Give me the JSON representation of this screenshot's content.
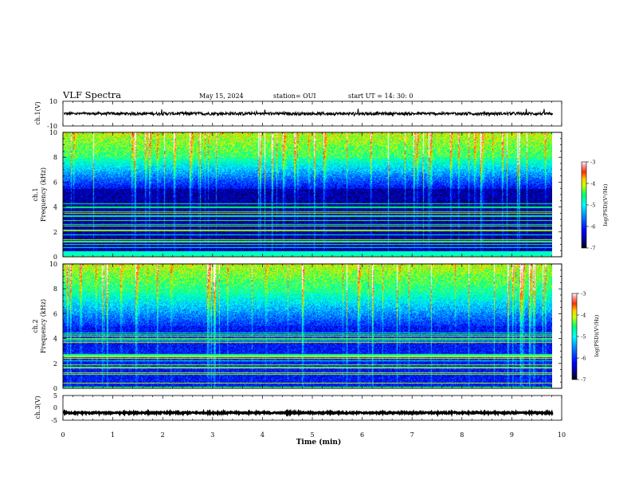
{
  "header": {
    "title": "VLF Spectra",
    "date": "May 15, 2024",
    "station": "station= OUI",
    "start": "start  UT  =   14: 30: 0"
  },
  "chart_data": [
    {
      "type": "line",
      "panel": "ch1-waveform",
      "ylabel": "ch.1(V)",
      "ylim": [
        -10,
        10
      ],
      "yticks": [
        "10",
        "-10"
      ],
      "trace_mean": 0,
      "trace_amplitude": 1.2
    },
    {
      "type": "heatmap",
      "panel": "ch1-spectrogram",
      "ylabel": [
        "ch.1",
        "Frequency  (kHz)"
      ],
      "ylim": [
        0,
        10
      ],
      "yticks": [
        "0",
        "2",
        "4",
        "6",
        "8",
        "10"
      ],
      "colorbar": {
        "label": "log(PSD)(V²/Hz)",
        "range": [
          -7,
          -3
        ],
        "ticks": [
          "-3",
          "-4",
          "-5",
          "-6",
          "-7"
        ]
      }
    },
    {
      "type": "heatmap",
      "panel": "ch2-spectrogram",
      "ylabel": [
        "ch.2",
        "Frequency  (kHz)"
      ],
      "ylim": [
        0,
        10
      ],
      "yticks": [
        "0",
        "2",
        "4",
        "6",
        "8",
        "10"
      ],
      "colorbar": {
        "label": "log(PSD)(V²/Hz)",
        "range": [
          -7,
          -3
        ],
        "ticks": [
          "-3",
          "-4",
          "-5",
          "-6",
          "-7"
        ]
      }
    },
    {
      "type": "line",
      "panel": "ch3-waveform",
      "ylabel": "ch.3(V)",
      "ylim": [
        -5,
        5
      ],
      "yticks": [
        "5",
        "0",
        "-5"
      ],
      "trace_mean": -2,
      "trace_amplitude": 0.3
    }
  ],
  "xaxis": {
    "label": "Time  (min)",
    "range": [
      0,
      10
    ],
    "ticks": [
      "0",
      "1",
      "2",
      "3",
      "4",
      "5",
      "6",
      "7",
      "8",
      "9",
      "10"
    ],
    "data_end": 9.82
  }
}
